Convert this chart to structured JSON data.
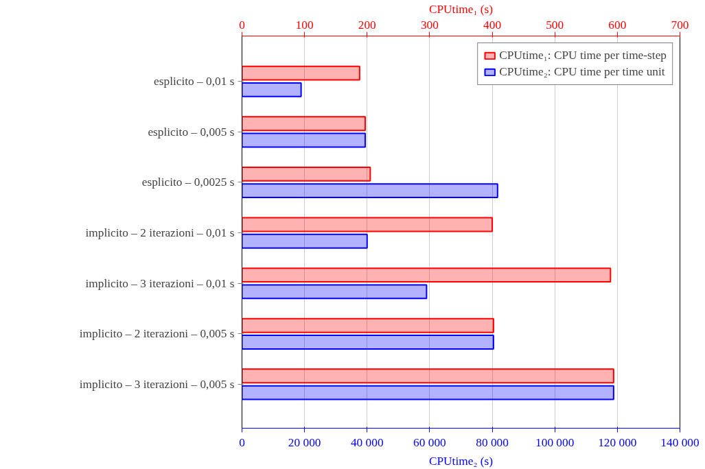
{
  "chart_data": {
    "type": "bar",
    "orientation": "horizontal",
    "categories": [
      "esplicito – 0,01 s",
      "esplicito – 0,005 s",
      "esplicito – 0,0025 s",
      "implicito – 2 iterazioni – 0,01 s",
      "implicito – 3 iterazioni – 0,01 s",
      "implicito – 2 iterazioni – 0,005 s",
      "implicito – 3 iterazioni – 0,005 s"
    ],
    "series": [
      {
        "name": "CPUtime₁: CPU time per time-step",
        "color": "#ff0000",
        "axis": "x2",
        "values": [
          188,
          197,
          205,
          400,
          589,
          402,
          594
        ]
      },
      {
        "name": "CPUtime₂: CPU time per time unit",
        "color": "#0000ff",
        "values": [
          18900,
          39400,
          81700,
          40000,
          59000,
          80400,
          118800
        ]
      }
    ],
    "xlabel": "CPUtime₂ (s)",
    "x2label": "CPUtime₁ (s)",
    "xlim": [
      0,
      140000
    ],
    "xticks": [
      0,
      {
        "value": 20000,
        "label": "20 000"
      },
      {
        "value": 40000,
        "label": "40 000"
      },
      {
        "value": 60000,
        "label": "60 000"
      },
      {
        "value": 80000,
        "label": "80 000"
      },
      {
        "value": 100000,
        "label": "100 000"
      },
      {
        "value": 120000,
        "label": "120 000"
      },
      {
        "value": 140000,
        "label": "140 000"
      }
    ],
    "x2lim": [
      0,
      700
    ],
    "x2ticks": [
      0,
      100,
      200,
      300,
      400,
      500,
      600,
      700
    ],
    "grid": "x",
    "legend": "top right"
  }
}
